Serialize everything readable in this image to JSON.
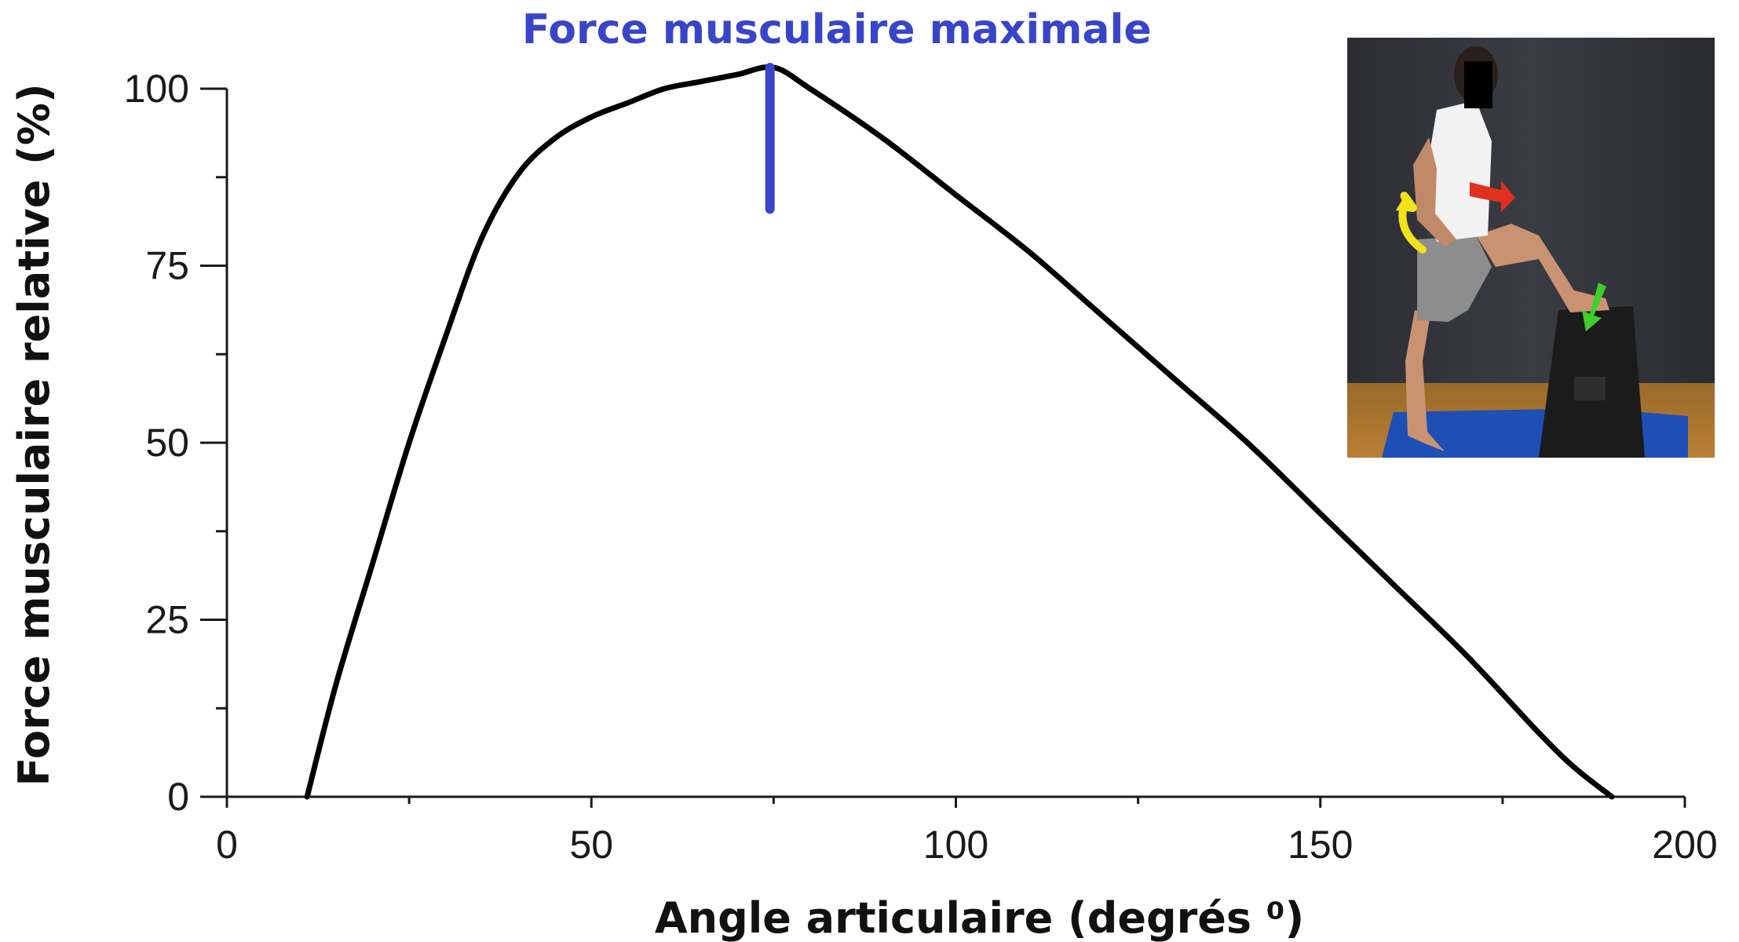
{
  "chart_data": {
    "type": "line",
    "title": "",
    "xlabel": "Angle articulaire (degrés ⁰)",
    "ylabel": "Force musculaire relative (%)",
    "xlim": [
      0,
      200
    ],
    "ylim": [
      0,
      100
    ],
    "x_ticks": [
      0,
      50,
      100,
      150,
      200
    ],
    "x_tick_labels": [
      "0",
      "50",
      "100",
      "150",
      "200"
    ],
    "x_minor_ticks": [
      25,
      75,
      125,
      175
    ],
    "y_ticks": [
      0,
      25,
      50,
      75,
      100
    ],
    "y_tick_labels": [
      "0",
      "25",
      "50",
      "75",
      "100"
    ],
    "y_minor_ticks": [
      12.5,
      37.5,
      62.5,
      87.5
    ],
    "grid": false,
    "series": [
      {
        "name": "",
        "color": "#000000",
        "x": [
          11,
          15,
          20,
          25,
          30,
          35,
          40,
          45,
          50,
          55,
          60,
          65,
          70,
          75,
          80,
          90,
          100,
          110,
          120,
          130,
          140,
          150,
          160,
          170,
          180,
          185,
          190
        ],
        "y": [
          0,
          16,
          33,
          50,
          65,
          79,
          88,
          93,
          96,
          98,
          100,
          101,
          102,
          103,
          100,
          93,
          85,
          77,
          68,
          59,
          50,
          40,
          30,
          20,
          9,
          4,
          0
        ]
      }
    ],
    "annotation": {
      "text": "Force musculaire maximale",
      "x": 74.5,
      "y_range": [
        83,
        103
      ],
      "color": "#3845c8"
    }
  },
  "photo": {
    "description_icon": "person-leg-raise-photo",
    "arrow_colors": [
      "#f2e21a",
      "#e0301e",
      "#3fcf2a"
    ]
  }
}
